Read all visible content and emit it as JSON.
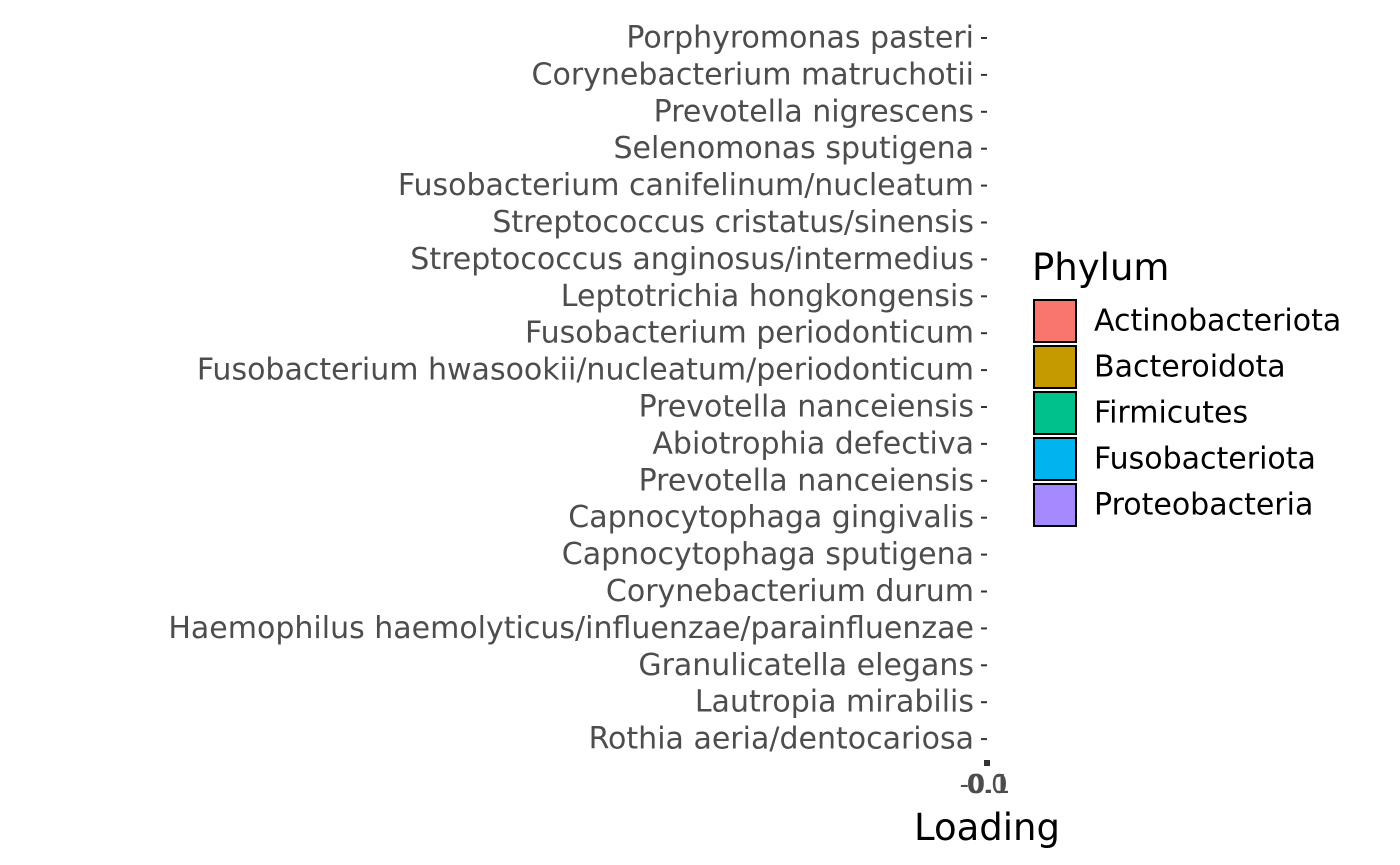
{
  "chart_data": {
    "type": "bar",
    "orientation": "horizontal",
    "categories": [
      "Porphyromonas pasteri",
      "Corynebacterium matruchotii",
      "Prevotella nigrescens",
      "Selenomonas sputigena",
      "Fusobacterium canifelinum/nucleatum",
      "Streptococcus cristatus/sinensis",
      "Streptococcus anginosus/intermedius",
      "Leptotrichia hongkongensis",
      "Fusobacterium periodonticum",
      "Fusobacterium hwasookii/nucleatum/periodonticum",
      "Prevotella nanceiensis",
      "Abiotrophia defectiva",
      "Prevotella nanceiensis",
      "Capnocytophaga gingivalis",
      "Capnocytophaga sputigena",
      "Corynebacterium durum",
      "Haemophilus haemolyticus/influenzae/parainfluenzae",
      "Granulicatella elegans",
      "Lautropia mirabilis",
      "Rothia aeria/dentocariosa"
    ],
    "x_ticks": [
      "-0.1",
      "0.0",
      "0.1"
    ],
    "xlabel": "Loading",
    "ylabel": "",
    "legend": {
      "title": "Phylum",
      "placement": "right",
      "entries": [
        {
          "name": "Actinobacteriota",
          "color": "#F8766D"
        },
        {
          "name": "Bacteroidota",
          "color": "#C49A00"
        },
        {
          "name": "Firmicutes",
          "color": "#00C08B"
        },
        {
          "name": "Fusobacteriota",
          "color": "#00B4EF"
        },
        {
          "name": "Proteobacteria",
          "color": "#A58AFF"
        }
      ]
    },
    "grid": false
  }
}
